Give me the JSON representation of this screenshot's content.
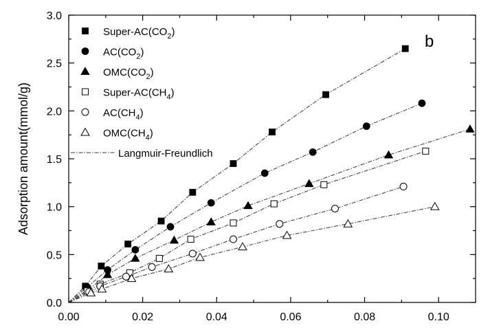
{
  "chart_data": {
    "type": "scatter",
    "panel_label": "b",
    "xlabel": "",
    "ylabel": "Adsorption amount(mmol/g)",
    "xlim": [
      0.0,
      0.11
    ],
    "ylim": [
      0.0,
      3.0
    ],
    "x_ticks": [
      "0.00",
      "0.02",
      "0.04",
      "0.06",
      "0.08",
      "0.10"
    ],
    "y_ticks": [
      "0.0",
      "0.5",
      "1.0",
      "1.5",
      "2.0",
      "2.5",
      "3.0"
    ],
    "legend_position": "top-left",
    "series": [
      {
        "name": "Super-AC(CO2)",
        "label_main": "Super-AC(CO",
        "label_sub": "2",
        "label_end": ")",
        "marker": "square",
        "filled": true,
        "x": [
          0.0,
          0.0045,
          0.0088,
          0.016,
          0.025,
          0.0335,
          0.0445,
          0.055,
          0.0695,
          0.091
        ],
        "y": [
          0.0,
          0.17,
          0.38,
          0.61,
          0.85,
          1.15,
          1.45,
          1.78,
          2.17,
          2.65
        ]
      },
      {
        "name": "AC(CO2)",
        "label_main": "AC(CO",
        "label_sub": "2",
        "label_end": ")",
        "marker": "circle",
        "filled": true,
        "x": [
          0.0,
          0.005,
          0.0105,
          0.018,
          0.0275,
          0.0385,
          0.053,
          0.066,
          0.0805,
          0.0955
        ],
        "y": [
          0.0,
          0.16,
          0.34,
          0.55,
          0.79,
          1.04,
          1.35,
          1.57,
          1.84,
          2.08
        ]
      },
      {
        "name": "OMC(CO2)",
        "label_main": "OMC(CO",
        "label_sub": "2",
        "label_end": ")",
        "marker": "triangle",
        "filled": true,
        "x": [
          0.0,
          0.0055,
          0.0105,
          0.018,
          0.0285,
          0.0385,
          0.0485,
          0.065,
          0.0865,
          0.1085
        ],
        "y": [
          0.0,
          0.14,
          0.29,
          0.46,
          0.65,
          0.84,
          1.01,
          1.24,
          1.54,
          1.81
        ]
      },
      {
        "name": "Super-AC(CH4)",
        "label_main": "Super-AC(CH",
        "label_sub": "4",
        "label_end": ")",
        "marker": "square",
        "filled": false,
        "x": [
          0.0,
          0.005,
          0.0085,
          0.0165,
          0.0245,
          0.033,
          0.0445,
          0.0555,
          0.069,
          0.0965
        ],
        "y": [
          0.0,
          0.12,
          0.19,
          0.31,
          0.46,
          0.66,
          0.83,
          1.03,
          1.23,
          1.58
        ]
      },
      {
        "name": "AC(CH4)",
        "label_main": "AC(CH",
        "label_sub": "4",
        "label_end": ")",
        "marker": "circle",
        "filled": false,
        "x": [
          0.0,
          0.0055,
          0.0085,
          0.0155,
          0.0225,
          0.0335,
          0.0445,
          0.057,
          0.072,
          0.0905
        ],
        "y": [
          0.0,
          0.11,
          0.17,
          0.27,
          0.37,
          0.51,
          0.66,
          0.82,
          0.98,
          1.21
        ]
      },
      {
        "name": "OMC(CH4)",
        "label_main": "OMC(CH",
        "label_sub": "4",
        "label_end": ")",
        "marker": "triangle",
        "filled": false,
        "x": [
          0.0,
          0.006,
          0.009,
          0.017,
          0.027,
          0.0355,
          0.047,
          0.059,
          0.0755,
          0.099
        ],
        "y": [
          0.0,
          0.1,
          0.14,
          0.25,
          0.35,
          0.47,
          0.58,
          0.7,
          0.82,
          1.0
        ]
      }
    ],
    "fit_line": {
      "name": "Langmuir-Freundlich",
      "style": "dash-dot"
    }
  }
}
